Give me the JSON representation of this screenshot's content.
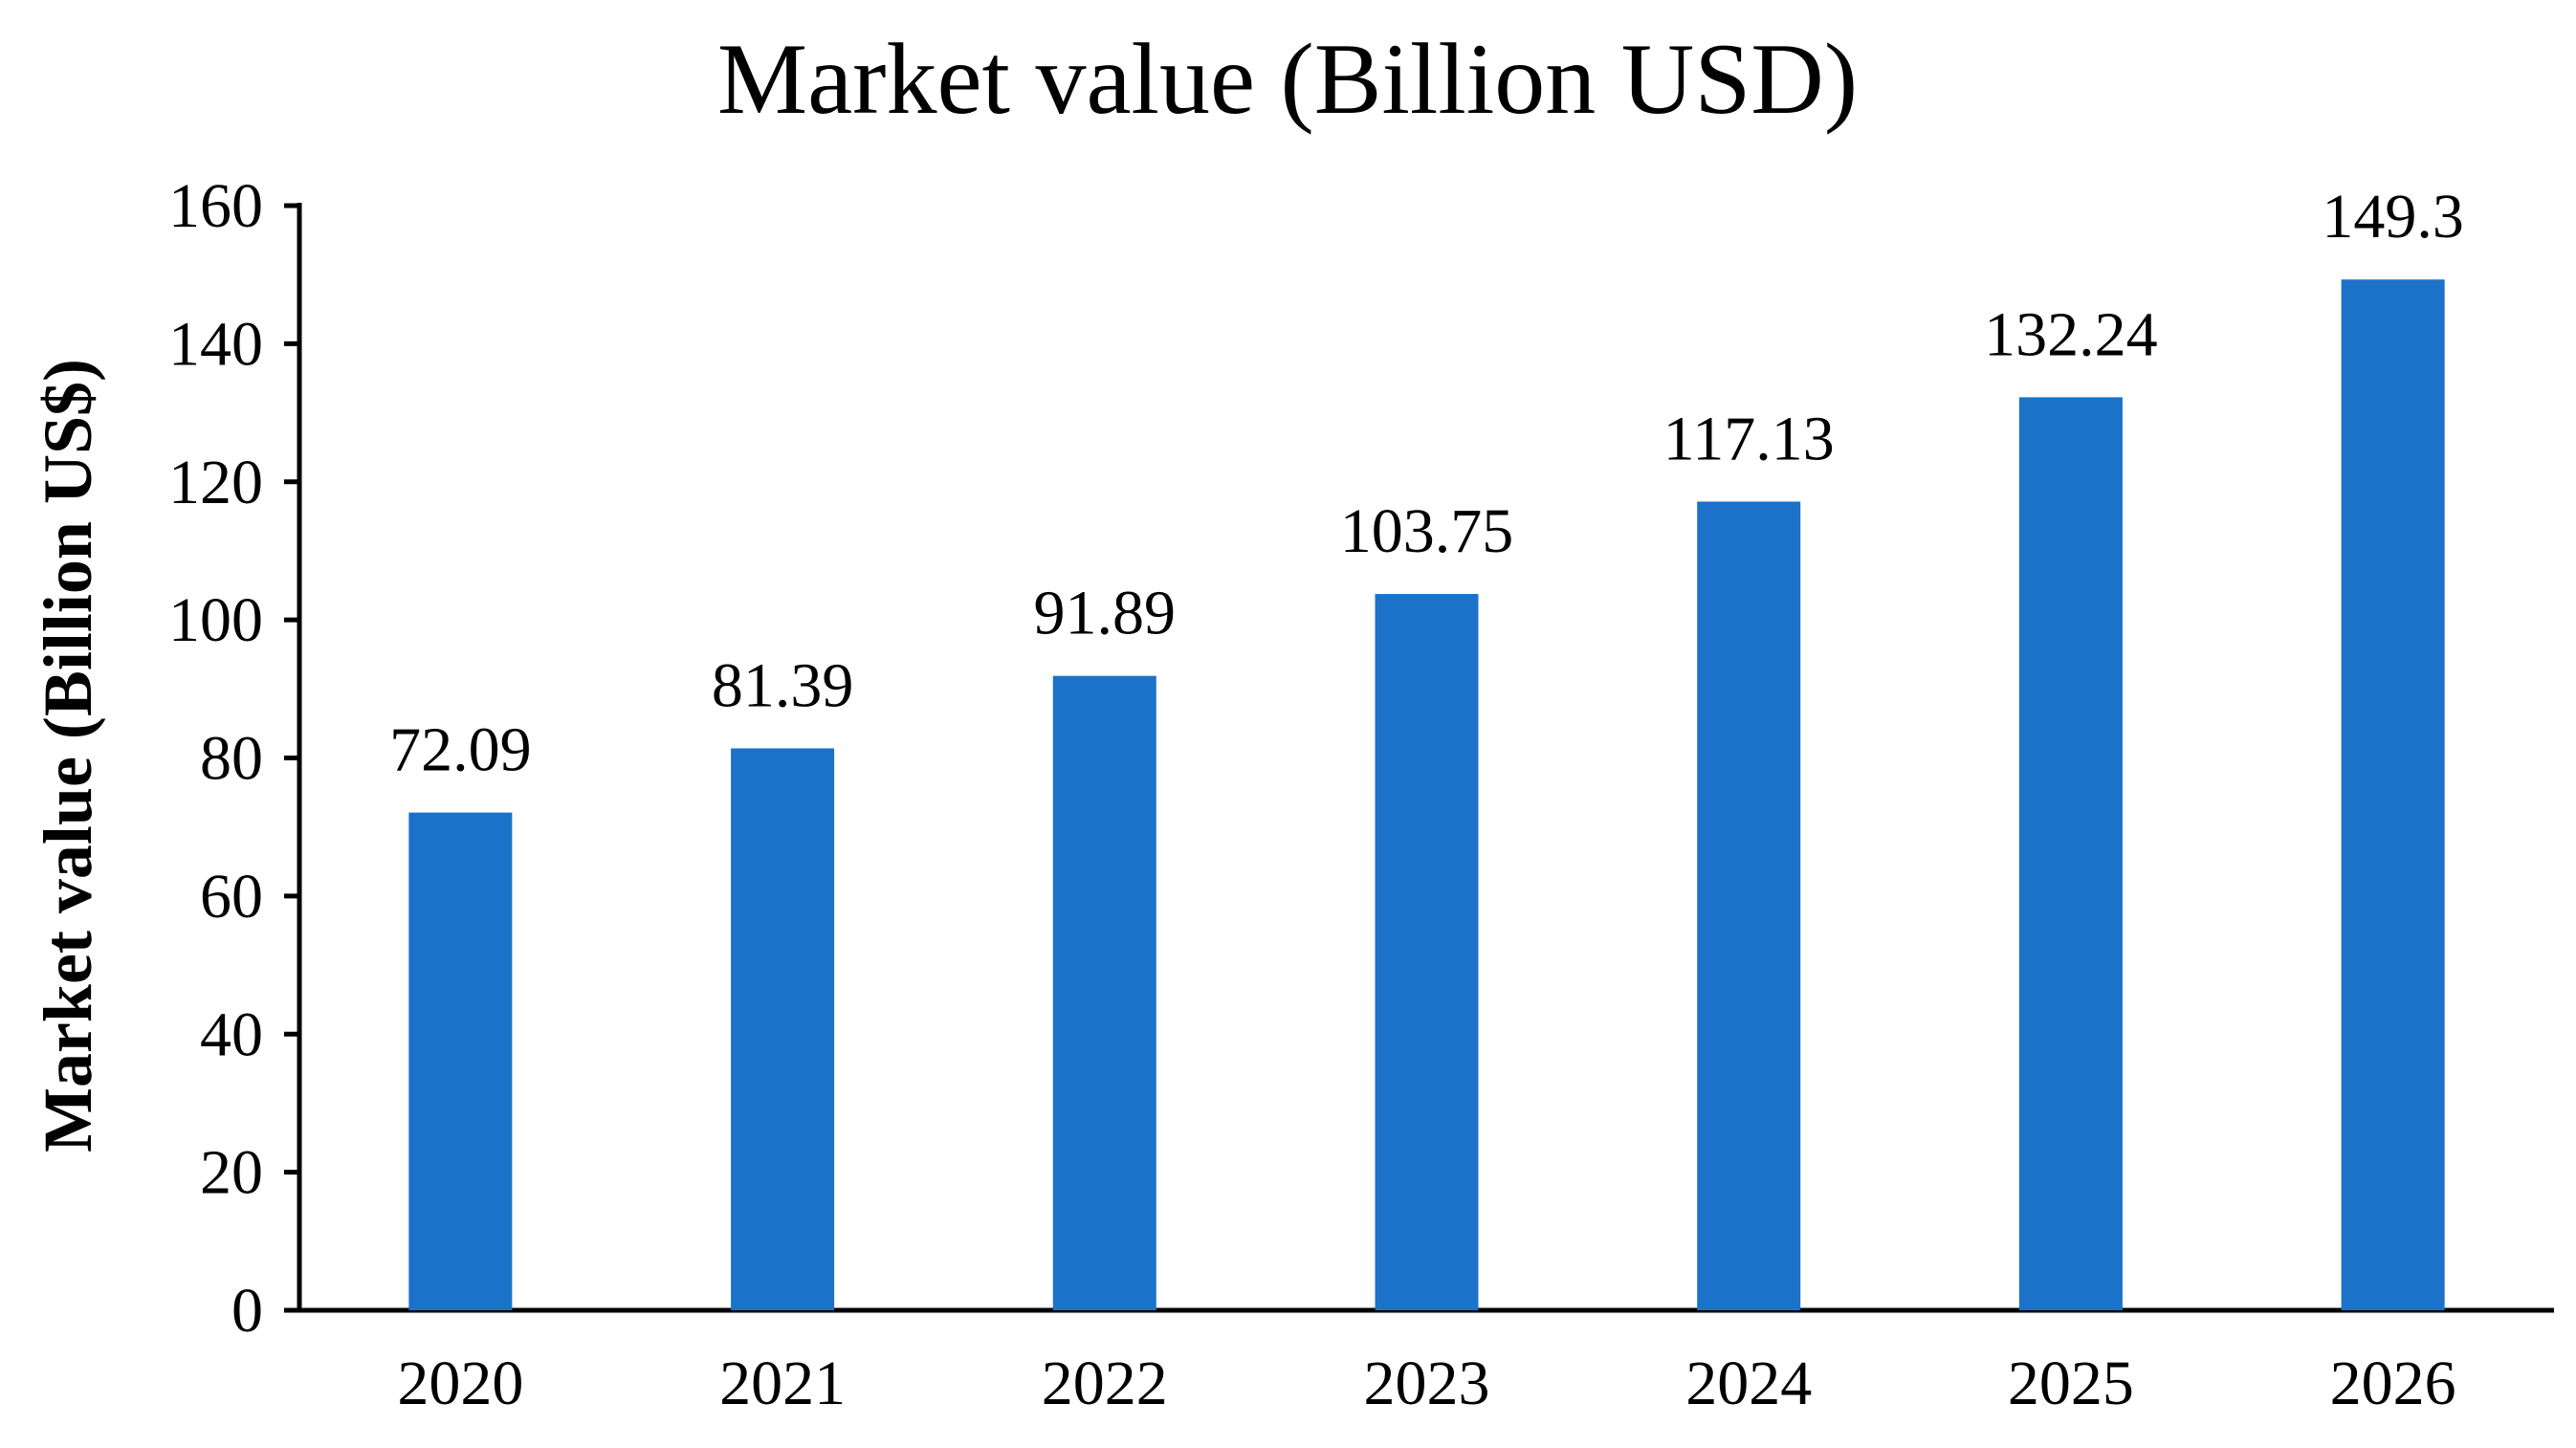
{
  "chart_data": {
    "type": "bar",
    "title": "Market value (Billion USD)",
    "xlabel": "",
    "ylabel": "Market value (Billion US$)",
    "categories": [
      "2020",
      "2021",
      "2022",
      "2023",
      "2024",
      "2025",
      "2026"
    ],
    "values": [
      72.09,
      81.39,
      91.89,
      103.75,
      117.13,
      132.24,
      149.3
    ],
    "data_labels": [
      "72.09",
      "81.39",
      "91.89",
      "103.75",
      "117.13",
      "132.24",
      "149.3"
    ],
    "ylim": [
      0,
      160
    ],
    "yticks": [
      0,
      20,
      40,
      60,
      80,
      100,
      120,
      140,
      160
    ],
    "grid": false,
    "legend": "none",
    "bar_color": "#1b72c8"
  }
}
